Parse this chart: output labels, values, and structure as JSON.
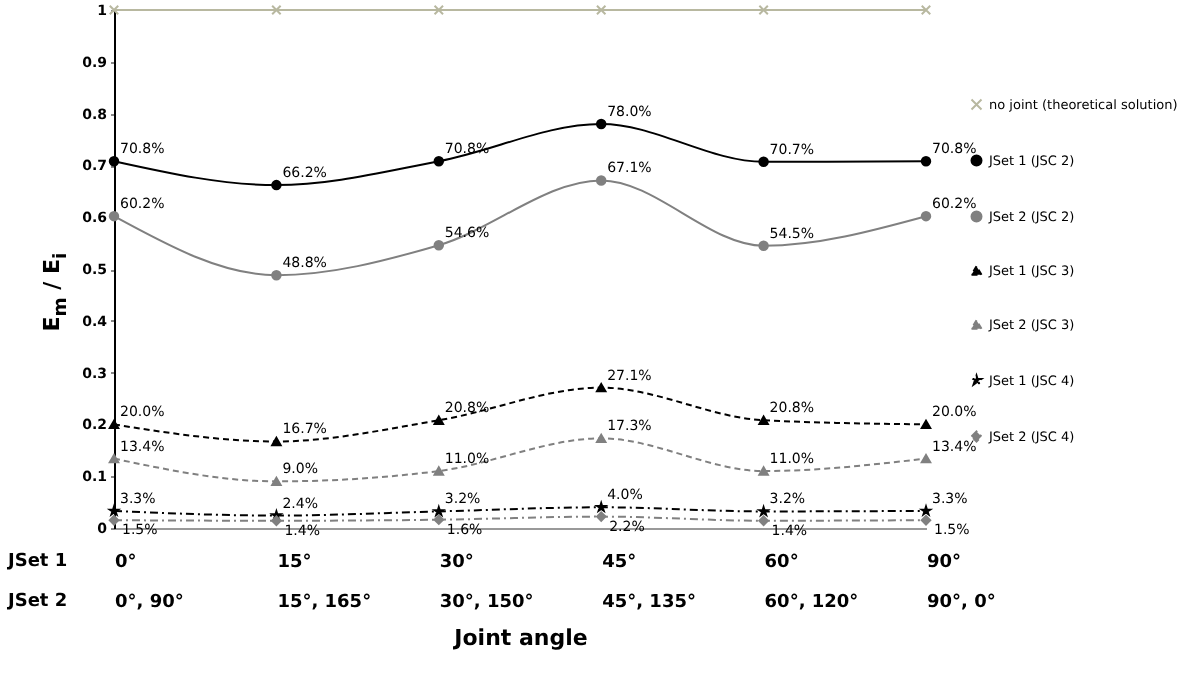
{
  "chart_data": {
    "type": "line",
    "xlabel": "Joint angle",
    "ylabel": "E$_{m}$ / E$_{i}$",
    "categories": [
      "0°",
      "15°",
      "30°",
      "45°",
      "60°",
      "90°"
    ],
    "annotations": [
      "JSet 1",
      "JSet 2",
      "0°, 90°",
      "15°, 165°",
      "30°, 150°",
      "45°, 135°",
      "60°, 120°",
      "90°, 0°"
    ],
    "ylim": [
      0,
      1
    ],
    "yticks": [
      0,
      0.1,
      0.2,
      0.3,
      0.4,
      0.5,
      0.6,
      0.7,
      0.8,
      0.9,
      1
    ],
    "legend": "right",
    "series": [
      {
        "name": "no joint (theoretical solution)",
        "color": "#b8b8a0",
        "marker": "cross",
        "line_style": "solid",
        "values": [
          1,
          1,
          1,
          1,
          1,
          1
        ]
      },
      {
        "name": "JSet 1 (JSC 2)",
        "color": "#000000",
        "marker": "circle",
        "line_style": "solid",
        "values": [
          0.708,
          0.662,
          0.708,
          0.78,
          0.707,
          0.708
        ],
        "value_labels": [
          "70.8%",
          "66.2%",
          "70.8%",
          "78.0%",
          "70.7%",
          "70.8%"
        ]
      },
      {
        "name": "JSet 2 (JSC 2)",
        "color": "#808080",
        "marker": "circle",
        "line_style": "solid",
        "values": [
          0.602,
          0.488,
          0.546,
          0.671,
          0.545,
          0.602
        ],
        "value_labels": [
          "60.2%",
          "48.8%",
          "54.6%",
          "67.1%",
          "54.5%",
          "60.2%"
        ]
      },
      {
        "name": "JSet 1 (JSC 3)",
        "color": "#000000",
        "marker": "triangle",
        "line_style": "dashed",
        "values": [
          0.2,
          0.167,
          0.208,
          0.271,
          0.208,
          0.2
        ],
        "value_labels": [
          "20.0%",
          "16.7%",
          "20.8%",
          "27.1%",
          "20.8%",
          "20.0%"
        ]
      },
      {
        "name": "JSet 2 (JSC 3)",
        "color": "#808080",
        "marker": "triangle",
        "line_style": "dashed",
        "values": [
          0.134,
          0.09,
          0.11,
          0.173,
          0.11,
          0.134
        ],
        "value_labels": [
          "13.4%",
          "9.0%",
          "11.0%",
          "17.3%",
          "11.0%",
          "13.4%"
        ]
      },
      {
        "name": "JSet 1 (JSC 4)",
        "color": "#000000",
        "marker": "star",
        "line_style": "dotted",
        "values": [
          0.033,
          0.024,
          0.032,
          0.04,
          0.032,
          0.033
        ],
        "value_labels": [
          "3.3%",
          "2.4%",
          "3.2%",
          "4.0%",
          "3.2%",
          "3.3%"
        ]
      },
      {
        "name": "JSet 2 (JSC 4)",
        "color": "#808080",
        "marker": "diamond",
        "line_style": "dotted",
        "values": [
          0.015,
          0.014,
          0.016,
          0.022,
          0.014,
          0.015
        ],
        "value_labels": [
          "1.5%",
          "1.4%",
          "1.6%",
          "2.2%",
          "1.4%",
          "1.5%"
        ]
      }
    ]
  }
}
